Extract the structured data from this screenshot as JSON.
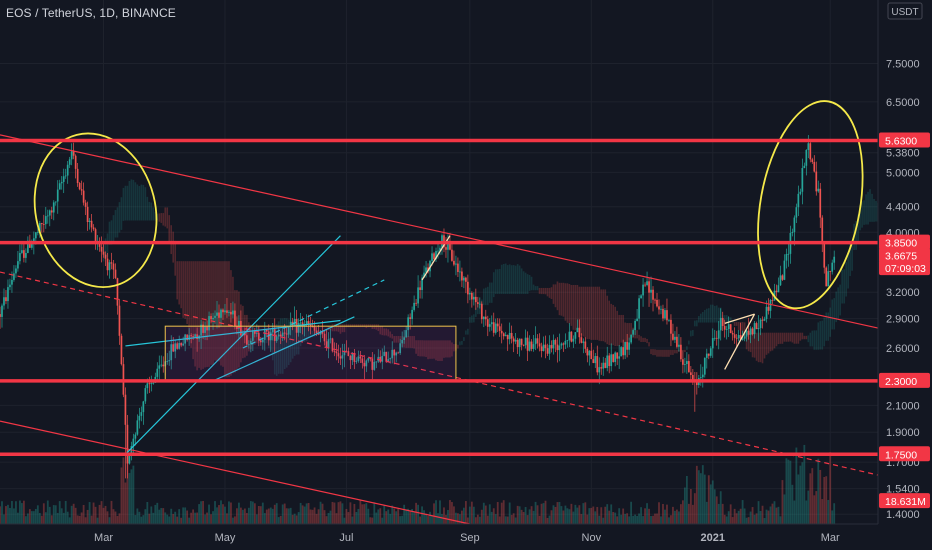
{
  "chart_data": {
    "type": "candlestick",
    "title": "EOS / TetherUS, 1D, BINANCE",
    "currency_label": "USDT",
    "y_scale": "log",
    "ylim": [
      1.35,
      9.5
    ],
    "y_ticks": [
      "7.5000",
      "6.5000",
      "5.3800",
      "5.0000",
      "4.4000",
      "4.0000",
      "3.2000",
      "2.9000",
      "2.6000",
      "2.1000",
      "1.9000",
      "1.7000",
      "1.5400",
      "1.4000"
    ],
    "x_ticks": [
      "Mar",
      "May",
      "Jul",
      "Sep",
      "Nov",
      "2021",
      "Mar"
    ],
    "x_tick_values": [
      "2020-03-01",
      "2020-05-01",
      "2020-07-01",
      "2020-09-01",
      "2020-11-01",
      "2021-01-01",
      "2021-03-01"
    ],
    "x_range": [
      "2020-01-09",
      "2021-03-25"
    ],
    "horizontal_levels": [
      {
        "label": "5.6300",
        "value": 5.63,
        "color": "#f23645"
      },
      {
        "label": "3.8500",
        "value": 3.85,
        "color": "#f23645"
      },
      {
        "label": "2.3000",
        "value": 2.3,
        "color": "#f23645"
      },
      {
        "label": "1.7500",
        "value": 1.75,
        "color": "#f23645"
      }
    ],
    "price_tags": [
      {
        "label": "3.6675",
        "value": 3.6675,
        "color": "#f23645"
      },
      {
        "label": "07:09:03",
        "value": 3.5,
        "color": "#f23645"
      },
      {
        "label": "18.631M",
        "value": 1.47,
        "color": "#f23645"
      }
    ],
    "trend_lines": [
      {
        "from": [
          "2020-01-09",
          5.75
        ],
        "to": [
          "2021-03-25",
          2.8
        ],
        "color": "#f23645",
        "style": "solid"
      },
      {
        "from": [
          "2020-01-09",
          3.45
        ],
        "to": [
          "2021-03-25",
          1.62
        ],
        "color": "#f23645",
        "style": "dashed"
      },
      {
        "from": [
          "2020-01-09",
          1.98
        ],
        "to": [
          "2020-09-01",
          1.35
        ],
        "color": "#f23645",
        "style": "solid"
      },
      {
        "from": [
          "2020-03-12",
          1.75
        ],
        "to": [
          "2020-06-28",
          3.95
        ],
        "color": "#26c6da",
        "style": "solid"
      },
      {
        "from": [
          "2020-03-12",
          2.62
        ],
        "to": [
          "2020-06-28",
          2.88
        ],
        "color": "#26c6da",
        "style": "solid"
      },
      {
        "from": [
          "2020-04-25",
          2.3
        ],
        "to": [
          "2020-07-05",
          2.92
        ],
        "color": "#26c6da",
        "style": "solid"
      },
      {
        "from": [
          "2020-05-10",
          2.6
        ],
        "to": [
          "2020-07-20",
          3.35
        ],
        "color": "#26c6da",
        "style": "dashed"
      }
    ],
    "accent_lines": [
      {
        "from": [
          "2020-08-08",
          3.35
        ],
        "to": [
          "2020-08-22",
          3.95
        ]
      },
      {
        "from": [
          "2021-01-07",
          2.85
        ],
        "to": [
          "2021-01-22",
          2.95
        ]
      },
      {
        "from": [
          "2021-01-07",
          2.4
        ],
        "to": [
          "2021-01-22",
          2.95
        ]
      }
    ],
    "rectangles": [
      {
        "from": [
          "2020-04-01",
          2.82
        ],
        "to": [
          "2020-08-25",
          2.3
        ],
        "color": "#f0c44c"
      }
    ],
    "ellipses": [
      {
        "from": [
          "2020-01-27",
          5.8
        ],
        "to": [
          "2020-03-27",
          3.25
        ],
        "color": "#f5e94a"
      },
      {
        "from": [
          "2021-01-25",
          6.55
        ],
        "to": [
          "2021-03-16",
          3.0
        ],
        "color": "#f5e94a"
      }
    ],
    "price_path": [
      [
        "2020-01-09",
        2.95
      ],
      [
        "2020-01-18",
        3.6
      ],
      [
        "2020-01-28",
        4.0
      ],
      [
        "2020-02-05",
        4.4
      ],
      [
        "2020-02-14",
        5.4
      ],
      [
        "2020-02-22",
        4.2
      ],
      [
        "2020-03-01",
        3.7
      ],
      [
        "2020-03-07",
        3.35
      ],
      [
        "2020-03-13",
        1.72
      ],
      [
        "2020-03-22",
        2.2
      ],
      [
        "2020-04-05",
        2.6
      ],
      [
        "2020-04-20",
        2.8
      ],
      [
        "2020-05-01",
        3.05
      ],
      [
        "2020-05-12",
        2.7
      ],
      [
        "2020-05-28",
        2.75
      ],
      [
        "2020-06-10",
        2.85
      ],
      [
        "2020-06-28",
        2.55
      ],
      [
        "2020-07-15",
        2.45
      ],
      [
        "2020-07-28",
        2.6
      ],
      [
        "2020-08-08",
        3.35
      ],
      [
        "2020-08-18",
        3.9
      ],
      [
        "2020-08-30",
        3.3
      ],
      [
        "2020-09-10",
        2.85
      ],
      [
        "2020-09-25",
        2.65
      ],
      [
        "2020-10-10",
        2.6
      ],
      [
        "2020-10-25",
        2.75
      ],
      [
        "2020-11-05",
        2.4
      ],
      [
        "2020-11-20",
        2.65
      ],
      [
        "2020-11-28",
        3.3
      ],
      [
        "2020-12-10",
        2.85
      ],
      [
        "2020-12-23",
        2.25
      ],
      [
        "2021-01-05",
        2.85
      ],
      [
        "2021-01-15",
        2.7
      ],
      [
        "2021-01-25",
        2.85
      ],
      [
        "2021-02-05",
        3.4
      ],
      [
        "2021-02-12",
        4.4
      ],
      [
        "2021-02-18",
        5.55
      ],
      [
        "2021-02-23",
        4.6
      ],
      [
        "2021-02-27",
        3.3
      ],
      [
        "2021-03-03",
        3.6675
      ]
    ]
  }
}
